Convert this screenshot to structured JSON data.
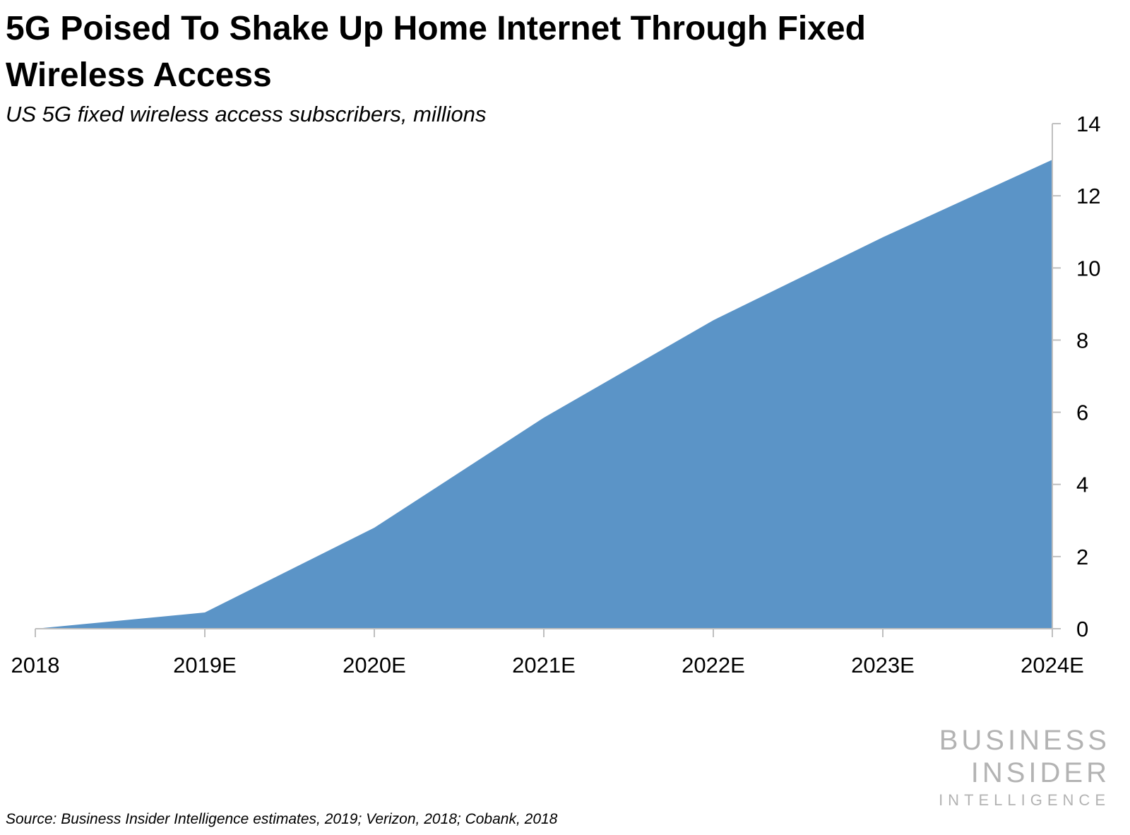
{
  "header": {
    "title": "5G Poised To Shake Up Home Internet Through Fixed Wireless Access",
    "subtitle": "US 5G fixed wireless access subscribers, millions"
  },
  "footer": {
    "source": "Source: Business Insider Intelligence estimates, 2019; Verizon, 2018; Cobank, 2018"
  },
  "logo": {
    "line1": "BUSINESS",
    "line2": "INSIDER",
    "line3": "INTELLIGENCE",
    "color": "#b3b3b3"
  },
  "chart_data": {
    "type": "area",
    "categories": [
      "2018",
      "2019E",
      "2020E",
      "2021E",
      "2022E",
      "2023E",
      "2024E"
    ],
    "series": [
      {
        "values": [
          0.0,
          0.45,
          2.8,
          5.85,
          8.55,
          10.85,
          13.0
        ],
        "color": "#5b94c7"
      }
    ],
    "ylim": [
      0,
      14
    ],
    "yticks": [
      0,
      2,
      4,
      6,
      8,
      10,
      12,
      14
    ],
    "y_axis_position": "right",
    "grid": false,
    "legend": "none",
    "xlabel": "",
    "ylabel": ""
  }
}
